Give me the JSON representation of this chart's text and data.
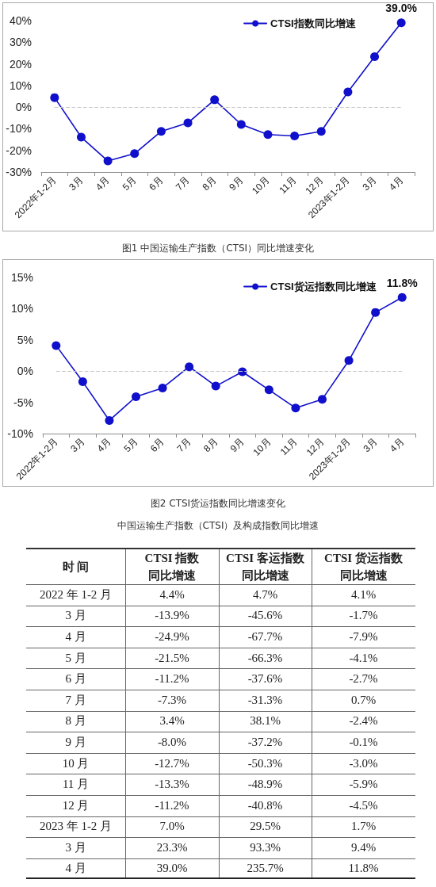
{
  "chart_data": [
    {
      "type": "line",
      "title": "图1 中国运输生产指数（CTSI）同比增速变化",
      "categories": [
        "2022年1-2月",
        "3月",
        "4月",
        "5月",
        "6月",
        "7月",
        "8月",
        "9月",
        "10月",
        "11月",
        "12月",
        "2023年1-2月",
        "3月",
        "4月"
      ],
      "series": [
        {
          "name": "CTSI指数同比增速",
          "color": "#1010cc",
          "values": [
            4.4,
            -13.9,
            -24.9,
            -21.5,
            -11.2,
            -7.3,
            3.4,
            -8.0,
            -12.7,
            -13.3,
            -11.2,
            7.0,
            23.3,
            39.0
          ],
          "value_labels": [
            null,
            null,
            null,
            null,
            null,
            null,
            null,
            null,
            null,
            null,
            null,
            null,
            null,
            "39.0%"
          ]
        }
      ],
      "ylim": [
        -30,
        40
      ],
      "yticks": [
        {
          "value": -30,
          "label": "-30%"
        },
        {
          "value": -20,
          "label": "-20%"
        },
        {
          "value": -10,
          "label": "-10%"
        },
        {
          "value": 0,
          "label": "0%"
        },
        {
          "value": 10,
          "label": "10%"
        },
        {
          "value": 20,
          "label": "20%"
        },
        {
          "value": 30,
          "label": "30%"
        },
        {
          "value": 40,
          "label": "40%"
        }
      ],
      "ref_lines": [
        {
          "axis": "y",
          "value": 0,
          "color": "#c8c8c8",
          "line_style": "dashed"
        }
      ],
      "legend": "top right",
      "marker": "circle"
    },
    {
      "type": "line",
      "title": "图2 CTSI货运指数同比增速变化",
      "categories": [
        "2022年1-2月",
        "3月",
        "4月",
        "5月",
        "6月",
        "7月",
        "8月",
        "9月",
        "10月",
        "11月",
        "12月",
        "2023年1-2月",
        "3月",
        "4月"
      ],
      "series": [
        {
          "name": "CTSI货运指数同比增速",
          "color": "#1010cc",
          "values": [
            4.1,
            -1.7,
            -7.9,
            -4.1,
            -2.7,
            0.7,
            -2.4,
            -0.1,
            -3.0,
            -5.9,
            -4.5,
            1.7,
            9.4,
            11.8
          ],
          "value_labels": [
            null,
            null,
            null,
            null,
            null,
            null,
            null,
            null,
            null,
            null,
            null,
            null,
            null,
            "11.8%"
          ]
        }
      ],
      "ylim": [
        -10,
        15
      ],
      "yticks": [
        {
          "value": -10,
          "label": "-10%"
        },
        {
          "value": -5,
          "label": "-5%"
        },
        {
          "value": 0,
          "label": "0%"
        },
        {
          "value": 5,
          "label": "5%"
        },
        {
          "value": 10,
          "label": "10%"
        },
        {
          "value": 15,
          "label": "15%"
        }
      ],
      "ref_lines": [
        {
          "axis": "y",
          "value": 0,
          "color": "#c8c8c8",
          "line_style": "dashed"
        }
      ],
      "legend": "top right",
      "marker": "circle"
    },
    {
      "type": "heatmap",
      "title": "中国运输生产指数（CTSI）及构成指数同比增速",
      "ylabel": "时 间",
      "categories": [
        "CTSI 指数同比增速",
        "CTSI 客运指数同比增速",
        "CTSI 货运指数同比增速"
      ],
      "y_categories": [
        "2022 年 1-2 月",
        "3 月",
        "4 月",
        "5 月",
        "6 月",
        "7 月",
        "8 月",
        "9 月",
        "10 月",
        "11 月",
        "12 月",
        "2023 年 1-2 月",
        "3 月",
        "4 月"
      ],
      "cells": [
        [
          4.4,
          4.7,
          4.1
        ],
        [
          -13.9,
          -45.6,
          -1.7
        ],
        [
          -24.9,
          -67.7,
          -7.9
        ],
        [
          -21.5,
          -66.3,
          -4.1
        ],
        [
          -11.2,
          -37.6,
          -2.7
        ],
        [
          -7.3,
          -31.3,
          0.7
        ],
        [
          3.4,
          38.1,
          -2.4
        ],
        [
          -8.0,
          -37.2,
          -0.1
        ],
        [
          -12.7,
          -50.3,
          -3.0
        ],
        [
          -13.3,
          -48.9,
          -5.9
        ],
        [
          -11.2,
          -40.8,
          -4.5
        ],
        [
          7.0,
          29.5,
          1.7
        ],
        [
          23.3,
          93.3,
          9.4
        ],
        [
          39.0,
          235.7,
          11.8
        ]
      ],
      "cell_labels": [
        [
          "4.4%",
          "4.7%",
          "4.1%"
        ],
        [
          "-13.9%",
          "-45.6%",
          "-1.7%"
        ],
        [
          "-24.9%",
          "-67.7%",
          "-7.9%"
        ],
        [
          "-21.5%",
          "-66.3%",
          "-4.1%"
        ],
        [
          "-11.2%",
          "-37.6%",
          "-2.7%"
        ],
        [
          "-7.3%",
          "-31.3%",
          "0.7%"
        ],
        [
          "3.4%",
          "38.1%",
          "-2.4%"
        ],
        [
          "-8.0%",
          "-37.2%",
          "-0.1%"
        ],
        [
          "-12.7%",
          "-50.3%",
          "-3.0%"
        ],
        [
          "-13.3%",
          "-48.9%",
          "-5.9%"
        ],
        [
          "-11.2%",
          "-40.8%",
          "-4.5%"
        ],
        [
          "7.0%",
          "29.5%",
          "1.7%"
        ],
        [
          "23.3%",
          "93.3%",
          "9.4%"
        ],
        [
          "39.0%",
          "235.7%",
          "11.8%"
        ]
      ],
      "grid": true
    }
  ]
}
